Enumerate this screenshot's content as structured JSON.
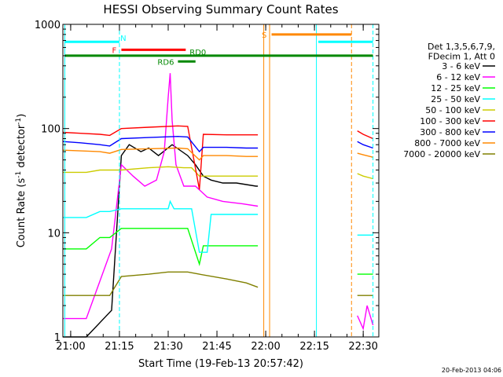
{
  "chart_data": {
    "type": "line",
    "title": "HESSI Observing Summary Count Rates",
    "xlabel": "Start Time (19-Feb-13 20:57:42)",
    "ylabel_prefix": "Count Rate (s",
    "ylabel_sup1": "-1",
    "ylabel_mid": " detector",
    "ylabel_sup2": "-1",
    "ylabel_suffix": ")",
    "timestamp": "20-Feb-2013 04:06",
    "yscale": "log",
    "ylim": [
      1,
      1000
    ],
    "xlim": [
      20.96,
      22.58
    ],
    "xticks": [
      {
        "value": 21.0,
        "label": "21:00"
      },
      {
        "value": 21.25,
        "label": "21:15"
      },
      {
        "value": 21.5,
        "label": "21:30"
      },
      {
        "value": 21.75,
        "label": "21:45"
      },
      {
        "value": 22.0,
        "label": "22:00"
      },
      {
        "value": 22.25,
        "label": "22:15"
      },
      {
        "value": 22.5,
        "label": "22:30"
      }
    ],
    "yticks": [
      {
        "value": 1,
        "label": "1"
      },
      {
        "value": 10,
        "label": "10"
      },
      {
        "value": 100,
        "label": "100"
      },
      {
        "value": 1000,
        "label": "1000"
      }
    ],
    "legend_header": [
      "Det 1,3,5,6,7,9,",
      "FDecim 1, Att 0"
    ],
    "series": [
      {
        "name": "3 - 6 keV",
        "color": "#000000",
        "x": [
          20.96,
          21.08,
          21.21,
          21.26,
          21.3,
          21.36,
          21.4,
          21.45,
          21.52,
          21.6,
          21.64,
          21.68,
          21.72,
          21.78,
          21.85,
          21.9,
          21.95,
          21.96
        ],
        "y": [
          1,
          1,
          1.8,
          55,
          70,
          60,
          65,
          55,
          70,
          55,
          45,
          35,
          32,
          30,
          30,
          29,
          28,
          28
        ]
      },
      {
        "name": "6 - 12 keV",
        "color": "#ff00ff",
        "x": [
          20.96,
          21.08,
          21.21,
          21.26,
          21.32,
          21.38,
          21.44,
          21.48,
          21.5,
          21.51,
          21.52,
          21.54,
          21.58,
          21.64,
          21.7,
          21.78,
          21.88,
          21.96,
          22.47,
          22.5,
          22.52,
          22.55
        ],
        "y": [
          1.5,
          1.5,
          7,
          45,
          35,
          28,
          32,
          60,
          200,
          340,
          120,
          45,
          28,
          28,
          22,
          20,
          19,
          18,
          1.6,
          1.2,
          2.0,
          1.3
        ]
      },
      {
        "name": "12 - 25 keV",
        "color": "#00ff00",
        "x": [
          20.96,
          21.08,
          21.15,
          21.2,
          21.26,
          21.4,
          21.55,
          21.6,
          21.66,
          21.68,
          21.8,
          21.9,
          21.96,
          22.47,
          22.5,
          22.55
        ],
        "y": [
          7,
          7,
          9,
          9,
          11,
          11,
          11,
          11,
          5,
          7.5,
          7.5,
          7.5,
          7.5,
          4,
          4,
          4
        ]
      },
      {
        "name": "25 - 50 keV",
        "color": "#00ffff",
        "x": [
          20.96,
          21.08,
          21.15,
          21.2,
          21.26,
          21.4,
          21.5,
          21.51,
          21.53,
          21.58,
          21.62,
          21.66,
          21.7,
          21.72,
          21.8,
          21.96,
          22.47,
          22.55
        ],
        "y": [
          14,
          14,
          16,
          16,
          17,
          17,
          17,
          20,
          17,
          17,
          17,
          6.5,
          6.5,
          15,
          15,
          15,
          9.5,
          9.5
        ]
      },
      {
        "name": "50 - 100 keV",
        "color": "#cccc00",
        "x": [
          20.96,
          21.08,
          21.15,
          21.2,
          21.26,
          21.4,
          21.5,
          21.58,
          21.62,
          21.66,
          21.72,
          21.8,
          21.9,
          21.96,
          22.47,
          22.5,
          22.55
        ],
        "y": [
          38,
          38,
          40,
          40,
          40,
          42,
          43,
          42,
          42,
          35,
          35,
          35,
          35,
          35,
          37,
          35,
          33
        ]
      },
      {
        "name": "100 - 300 keV",
        "color": "#ff0000",
        "x": [
          20.96,
          21.05,
          21.15,
          21.2,
          21.26,
          21.4,
          21.55,
          21.6,
          21.66,
          21.68,
          21.8,
          21.9,
          21.96,
          22.47,
          22.5,
          22.55
        ],
        "y": [
          92,
          90,
          88,
          86,
          100,
          103,
          106,
          105,
          26,
          88,
          87,
          87,
          87,
          95,
          88,
          80
        ]
      },
      {
        "name": "300 - 800 keV",
        "color": "#0000ff",
        "x": [
          20.96,
          21.05,
          21.15,
          21.2,
          21.26,
          21.4,
          21.55,
          21.6,
          21.66,
          21.68,
          21.8,
          21.9,
          21.96,
          22.47,
          22.5,
          22.55
        ],
        "y": [
          75,
          73,
          70,
          68,
          80,
          82,
          84,
          83,
          60,
          66,
          66,
          65,
          65,
          75,
          70,
          65
        ]
      },
      {
        "name": "800 - 7000 keV",
        "color": "#ff8800",
        "x": [
          20.96,
          21.05,
          21.15,
          21.2,
          21.26,
          21.4,
          21.55,
          21.6,
          21.66,
          21.68,
          21.8,
          21.9,
          21.96,
          22.47,
          22.5,
          22.55
        ],
        "y": [
          62,
          61,
          60,
          58,
          63,
          64,
          65,
          64,
          50,
          55,
          55,
          54,
          54,
          58,
          56,
          53
        ]
      },
      {
        "name": "7000 - 20000 keV",
        "color": "#808000",
        "x": [
          20.96,
          21.08,
          21.15,
          21.2,
          21.26,
          21.4,
          21.5,
          21.6,
          21.66,
          21.8,
          21.9,
          21.96,
          22.47,
          22.5,
          22.55
        ],
        "y": [
          2.5,
          2.5,
          2.5,
          2.5,
          3.8,
          4.0,
          4.2,
          4.2,
          4.0,
          3.6,
          3.3,
          3.0,
          2.5,
          2.5,
          2.5
        ]
      }
    ],
    "flag_segments": [
      {
        "label": "N",
        "color": "#00ffff",
        "x1": 20.97,
        "x2": 21.25,
        "y": 680,
        "label_x": 21.27,
        "label_pos": "right"
      },
      {
        "label": "",
        "color": "#00ffff",
        "x1": 22.27,
        "x2": 22.55,
        "y": 680,
        "label_x": null,
        "label_pos": "none"
      },
      {
        "label": "F",
        "color": "#ff0000",
        "x1": 21.26,
        "x2": 21.59,
        "y": 570,
        "label_x": 21.235,
        "label_pos": "left"
      },
      {
        "label": "S",
        "color": "#ff8800",
        "x1": 22.03,
        "x2": 22.44,
        "y": 800,
        "label_x": 22.005,
        "label_pos": "left"
      },
      {
        "label": "RD0",
        "color": "#008800",
        "x1": 20.97,
        "x2": 22.55,
        "y": 500,
        "label_x": 21.61,
        "label_pos": "above-right"
      },
      {
        "label": "RD6",
        "color": "#008800",
        "x1": 21.55,
        "x2": 21.64,
        "y": 440,
        "label_x": 21.53,
        "label_pos": "left"
      }
    ],
    "vertical_markers": [
      {
        "x": 20.97,
        "color": "#00ffff",
        "style": "solid"
      },
      {
        "x": 21.25,
        "color": "#00ffff",
        "style": "dashed"
      },
      {
        "x": 21.99,
        "color": "#ff8800",
        "style": "solid"
      },
      {
        "x": 22.02,
        "color": "#ff8800",
        "style": "solid"
      },
      {
        "x": 22.26,
        "color": "#00ffff",
        "style": "solid"
      },
      {
        "x": 22.44,
        "color": "#ff8800",
        "style": "dashed"
      },
      {
        "x": 22.55,
        "color": "#00ffff",
        "style": "dashed"
      }
    ],
    "legend_placement": "right",
    "grid": false
  }
}
